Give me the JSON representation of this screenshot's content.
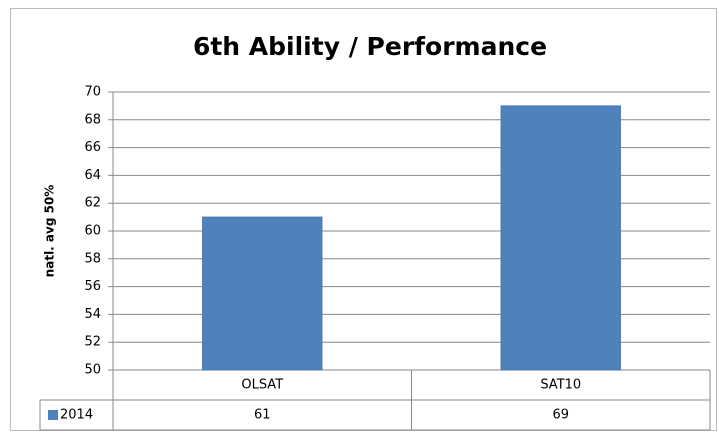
{
  "chart_data": {
    "type": "bar",
    "title": "6th Ability / Performance",
    "y_label": "natl. avg 50%",
    "categories": [
      "OLSAT",
      "SAT10"
    ],
    "series": [
      {
        "name": "2014",
        "color": "#4f81bd",
        "values": [
          61,
          69
        ]
      }
    ],
    "ylim": [
      50,
      70
    ],
    "yticks": [
      50,
      52,
      54,
      56,
      58,
      60,
      62,
      64,
      66,
      68,
      70
    ],
    "grid": true
  }
}
